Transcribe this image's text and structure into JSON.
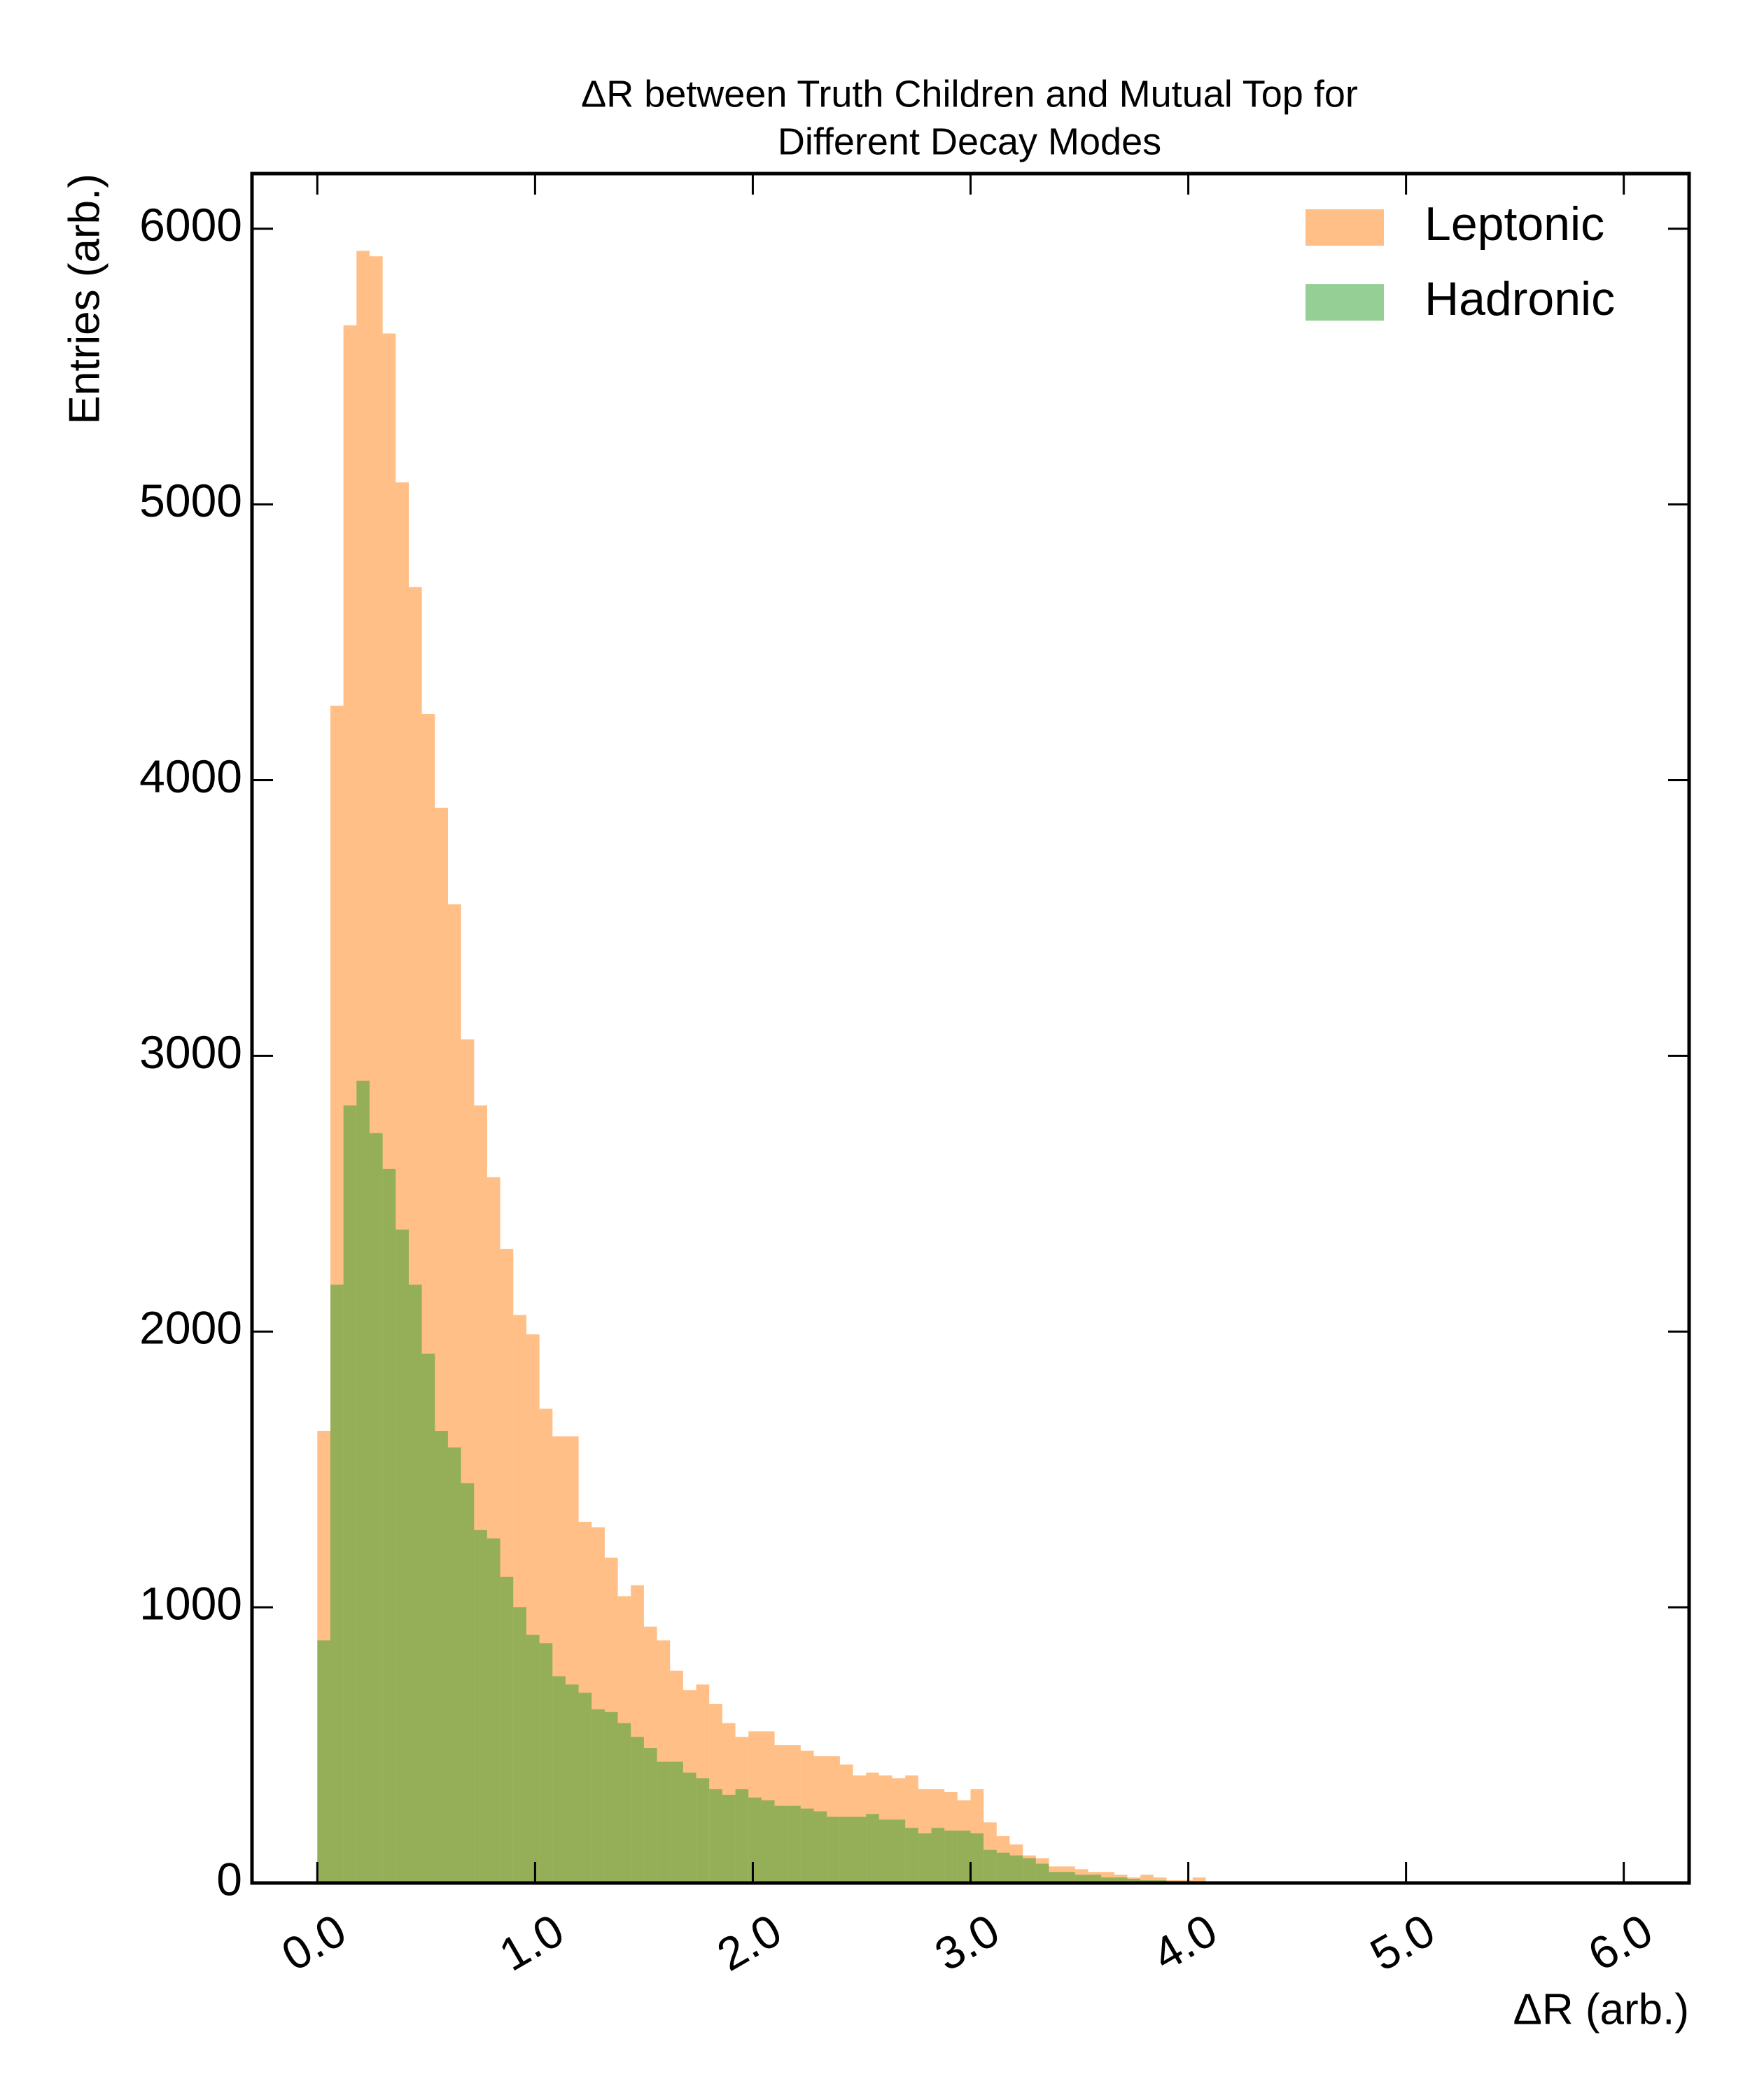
{
  "chart_data": {
    "type": "histogram",
    "title": [
      "ΔR between Truth Children and Mutual Top for",
      "Different Decay Modes"
    ],
    "x_label": "ΔR (arb.)",
    "y_label": "Entries (arb.)",
    "bins": [
      0,
      0.06,
      0.12,
      0.18,
      0.24,
      0.3,
      0.36,
      0.42,
      0.48,
      0.54,
      0.6,
      0.66,
      0.72,
      0.78,
      0.84,
      0.9,
      0.96,
      1.02,
      1.08,
      1.14,
      1.2,
      1.26,
      1.32,
      1.38,
      1.44,
      1.5,
      1.56,
      1.62,
      1.68,
      1.74,
      1.8,
      1.86,
      1.92,
      1.98,
      2.04,
      2.1,
      2.16,
      2.22,
      2.28,
      2.34,
      2.4,
      2.46,
      2.52,
      2.58,
      2.64,
      2.7,
      2.76,
      2.82,
      2.88,
      2.94,
      3.0,
      3.06,
      3.12,
      3.18,
      3.24,
      3.3,
      3.36,
      3.42,
      3.48,
      3.54,
      3.6,
      3.66,
      3.72,
      3.78,
      3.84,
      3.9,
      3.96,
      4.02,
      4.08,
      4.14,
      4.2,
      4.26,
      4.32,
      4.38,
      4.44,
      4.5,
      4.56,
      4.62,
      4.68,
      4.74,
      4.8,
      4.86,
      4.92,
      4.98,
      5.04,
      5.1,
      5.16,
      5.22,
      5.28,
      5.34,
      5.4,
      5.46,
      5.52,
      5.58,
      5.64,
      5.7,
      5.76,
      5.82,
      5.88,
      5.94,
      6.0
    ],
    "series": [
      {
        "name": "Leptonic",
        "color": "#ff7f0e",
        "opacity": 0.5,
        "values": [
          1640,
          4270,
          5650,
          5920,
          5900,
          5620,
          5080,
          4700,
          4240,
          3900,
          3550,
          3060,
          2820,
          2560,
          2300,
          2060,
          1990,
          1720,
          1620,
          1620,
          1310,
          1290,
          1180,
          1040,
          1080,
          930,
          880,
          770,
          700,
          720,
          650,
          580,
          530,
          550,
          550,
          500,
          500,
          480,
          460,
          460,
          430,
          390,
          400,
          390,
          380,
          390,
          340,
          340,
          330,
          300,
          340,
          220,
          170,
          140,
          100,
          90,
          60,
          60,
          50,
          40,
          40,
          30,
          20,
          30,
          20,
          10,
          10,
          20,
          5,
          5,
          5,
          5,
          5,
          3,
          3,
          3,
          3,
          2,
          2,
          2,
          1,
          1,
          1,
          1,
          0,
          0,
          0,
          0,
          0,
          0,
          0,
          0,
          0,
          0,
          0,
          0,
          0,
          0,
          0,
          0
        ]
      },
      {
        "name": "Hadronic",
        "color": "#2ca02c",
        "opacity": 0.5,
        "values": [
          880,
          2170,
          2820,
          2910,
          2720,
          2590,
          2370,
          2170,
          1920,
          1640,
          1580,
          1450,
          1280,
          1250,
          1110,
          1000,
          900,
          870,
          750,
          720,
          690,
          630,
          620,
          580,
          530,
          490,
          440,
          440,
          400,
          380,
          340,
          320,
          340,
          310,
          300,
          280,
          280,
          270,
          260,
          240,
          240,
          240,
          250,
          230,
          230,
          200,
          180,
          200,
          190,
          190,
          180,
          120,
          110,
          100,
          90,
          70,
          40,
          40,
          30,
          30,
          20,
          20,
          15,
          10,
          10,
          5,
          5,
          5,
          3,
          3,
          2,
          2,
          2,
          1,
          1,
          1,
          1,
          0,
          0,
          0,
          0,
          0,
          0,
          0,
          0,
          0,
          0,
          0,
          0,
          0,
          0,
          0,
          0,
          0,
          0,
          0,
          0,
          0,
          0,
          0
        ]
      }
    ],
    "xlim": [
      -0.3,
      6.3
    ],
    "ylim": [
      0,
      6200
    ],
    "xticks": [
      {
        "value": 0,
        "label": "0.0"
      },
      {
        "value": 1,
        "label": "1.0"
      },
      {
        "value": 2,
        "label": "2.0"
      },
      {
        "value": 3,
        "label": "3.0"
      },
      {
        "value": 4,
        "label": "4.0"
      },
      {
        "value": 5,
        "label": "5.0"
      },
      {
        "value": 6,
        "label": "6.0"
      }
    ],
    "yticks": [
      0,
      1000,
      2000,
      3000,
      4000,
      5000,
      6000
    ],
    "legend": "upper right",
    "grid": false
  }
}
